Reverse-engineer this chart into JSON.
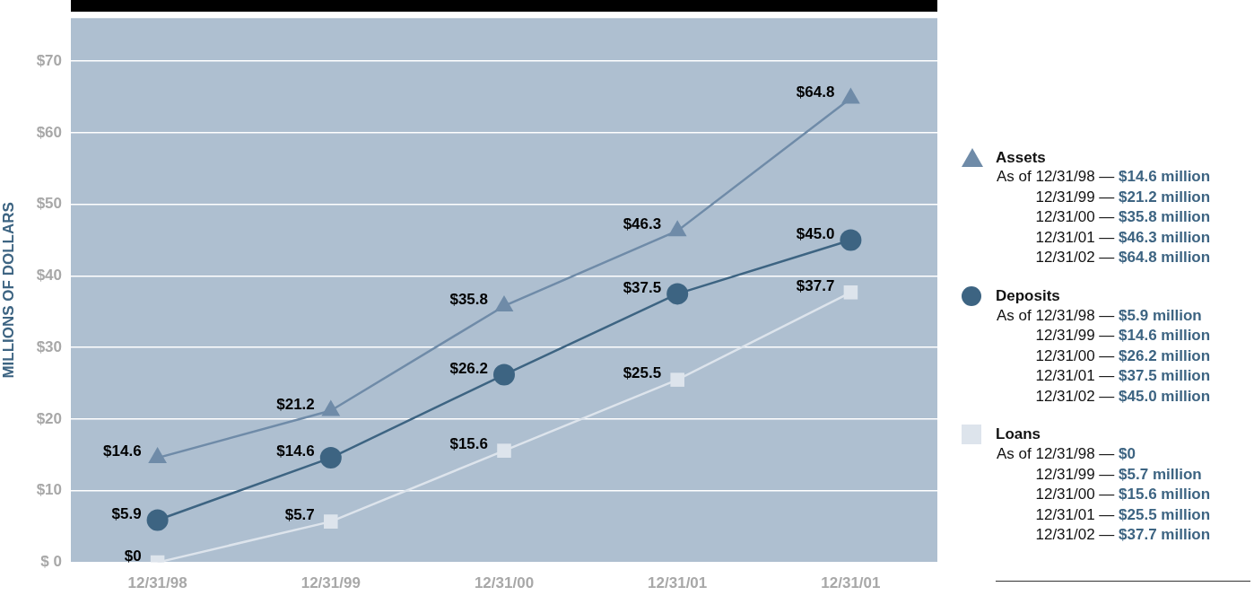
{
  "chart_data": {
    "type": "line",
    "ylabel": "MILLIONS OF DOLLARS",
    "categories": [
      "12/31/98",
      "12/31/99",
      "12/31/00",
      "12/31/01",
      "12/31/01"
    ],
    "series": [
      {
        "name": "Assets",
        "color": "#6f8ba8",
        "marker": "triangle",
        "values": [
          14.6,
          21.2,
          35.8,
          46.3,
          64.8
        ],
        "value_labels": [
          "$14.6",
          "$21.2",
          "$35.8",
          "$46.3",
          "$64.8"
        ]
      },
      {
        "name": "Deposits",
        "color": "#3d6482",
        "marker": "circle",
        "values": [
          5.9,
          14.6,
          26.2,
          37.5,
          45.0
        ],
        "value_labels": [
          "$5.9",
          "$14.6",
          "$26.2",
          "$37.5",
          "$45.0"
        ]
      },
      {
        "name": "Loans",
        "color": "#dde4ec",
        "marker": "square",
        "values": [
          0,
          5.7,
          15.6,
          25.5,
          37.7
        ],
        "value_labels": [
          "$0",
          "$5.7",
          "$15.6",
          "$25.5",
          "$37.7"
        ]
      }
    ],
    "ylim": [
      0,
      76
    ],
    "yticks": [
      {
        "value": 0,
        "label": "$ 0"
      },
      {
        "value": 10,
        "label": "$10"
      },
      {
        "value": 20,
        "label": "$20"
      },
      {
        "value": 30,
        "label": "$30"
      },
      {
        "value": 40,
        "label": "$40"
      },
      {
        "value": 50,
        "label": "$50"
      },
      {
        "value": 60,
        "label": "$60"
      },
      {
        "value": 70,
        "label": "$70"
      }
    ],
    "grid": "y",
    "legend": "right",
    "annotations": [
      "As of 12/31/98 — $14.6 million",
      "12/31/99 — $21.2 million",
      "12/31/00 — $35.8 million",
      "12/31/01 — $46.3 million",
      "12/31/02 — $64.8 million",
      "As of 12/31/98 — $5.9 million",
      "12/31/99 — $14.6 million",
      "12/31/00 — $26.2 million",
      "12/31/01 — $37.5 million",
      "12/31/02 — $45.0 million",
      "As of 12/31/98 — $0",
      "12/31/99 — $5.7 million",
      "12/31/00 — $15.6 million",
      "12/31/01 — $25.5 million",
      "12/31/02 — $37.7 million"
    ]
  }
}
